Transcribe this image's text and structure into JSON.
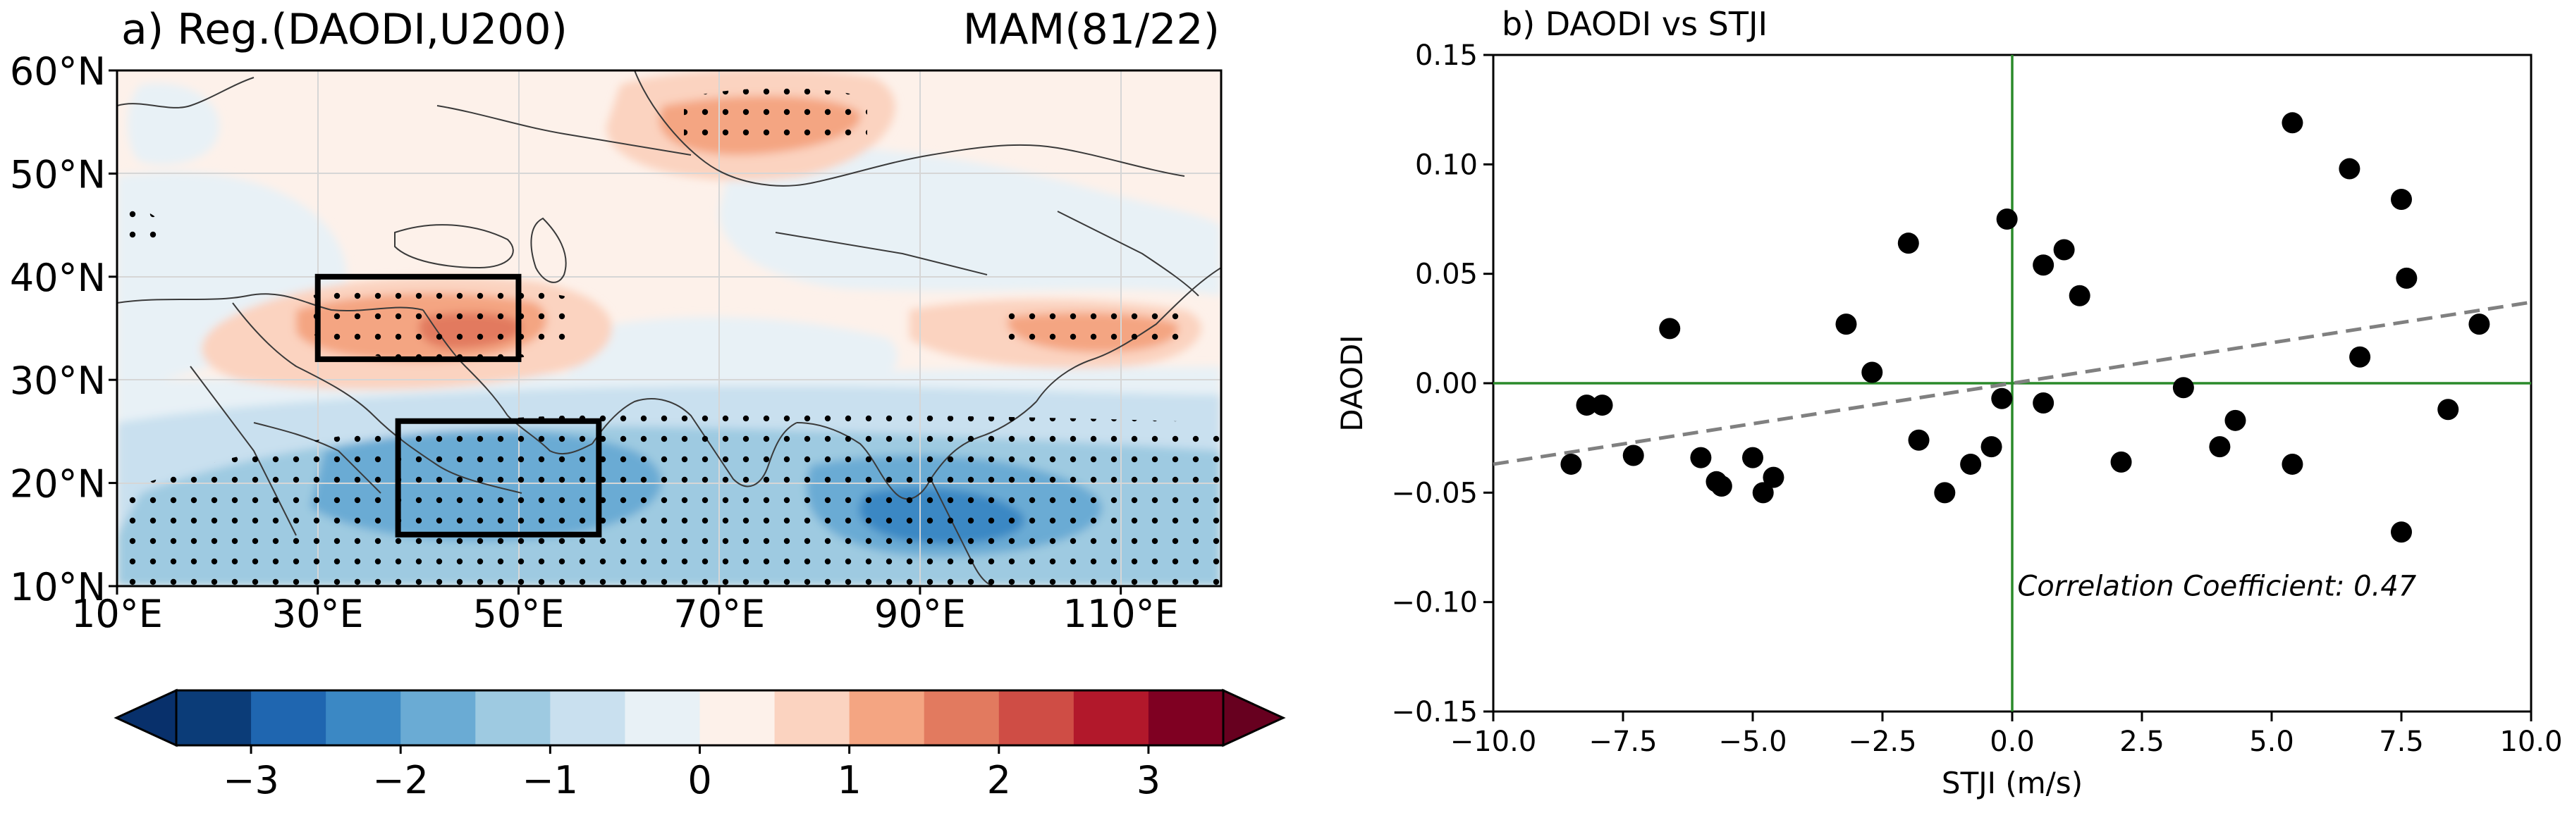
{
  "panel_a": {
    "title": "a) Reg.(DAODI,U200)",
    "season_label": "MAM(81/22)",
    "lat_ticks": [
      "10°N",
      "20°N",
      "30°N",
      "40°N",
      "50°N",
      "60°N"
    ],
    "lon_ticks": [
      "10°E",
      "30°E",
      "50°E",
      "70°E",
      "90°E",
      "110°E"
    ],
    "lon_range": [
      10,
      120
    ],
    "lat_range": [
      10,
      60
    ],
    "boxes": [
      {
        "name": "north-box",
        "lon": [
          30,
          50
        ],
        "lat": [
          32,
          40
        ]
      },
      {
        "name": "south-box",
        "lon": [
          38,
          58
        ],
        "lat": [
          15,
          26
        ]
      }
    ],
    "colorbar": {
      "levels": [
        -3.5,
        -3,
        -2.5,
        -2,
        -1.5,
        -1,
        -0.5,
        0,
        0.5,
        1,
        1.5,
        2,
        2.5,
        3,
        3.5
      ],
      "colors": [
        "#0b3c78",
        "#1f66b0",
        "#3b88c4",
        "#6aabd4",
        "#9ecae1",
        "#c9e0ef",
        "#e8f1f6",
        "#fdf1ea",
        "#fbd3c0",
        "#f4a582",
        "#e27a5f",
        "#cf4d45",
        "#b2182b",
        "#7f0022"
      ],
      "under_color": "#08306b",
      "over_color": "#67001f",
      "tick_labels": [
        "−3",
        "−2",
        "−1",
        "0",
        "1",
        "2",
        "3"
      ],
      "tick_values": [
        -3,
        -2,
        -1,
        0,
        1,
        2,
        3
      ]
    }
  },
  "chart_data": {
    "type": "scatter",
    "title": "b) DAODI vs STJI",
    "xlabel": "STJI (m/s)",
    "ylabel": "DAODI",
    "xlim": [
      -10,
      10
    ],
    "ylim": [
      -0.15,
      0.15
    ],
    "x_ticks": [
      -10,
      -7.5,
      -5,
      -2.5,
      0,
      2.5,
      5,
      7.5,
      10
    ],
    "x_tick_labels": [
      "−10.0",
      "−7.5",
      "−5.0",
      "−2.5",
      "0.0",
      "2.5",
      "5.0",
      "7.5",
      "10.0"
    ],
    "y_ticks": [
      -0.15,
      -0.1,
      -0.05,
      0,
      0.05,
      0.1,
      0.15
    ],
    "y_tick_labels": [
      "−0.15",
      "−0.10",
      "−0.05",
      "0.00",
      "0.05",
      "0.10",
      "0.15"
    ],
    "grid": false,
    "points": [
      {
        "x": -8.5,
        "y": -0.037
      },
      {
        "x": -8.2,
        "y": -0.01
      },
      {
        "x": -7.9,
        "y": -0.01
      },
      {
        "x": -7.3,
        "y": -0.033
      },
      {
        "x": -6.6,
        "y": 0.025
      },
      {
        "x": -6.0,
        "y": -0.034
      },
      {
        "x": -5.7,
        "y": -0.045
      },
      {
        "x": -5.6,
        "y": -0.047
      },
      {
        "x": -5.0,
        "y": -0.034
      },
      {
        "x": -4.8,
        "y": -0.05
      },
      {
        "x": -4.6,
        "y": -0.043
      },
      {
        "x": -3.2,
        "y": 0.027
      },
      {
        "x": -2.7,
        "y": 0.005
      },
      {
        "x": -2.0,
        "y": 0.064
      },
      {
        "x": -1.8,
        "y": -0.026
      },
      {
        "x": -1.3,
        "y": -0.05
      },
      {
        "x": -0.8,
        "y": -0.037
      },
      {
        "x": -0.4,
        "y": -0.029
      },
      {
        "x": -0.2,
        "y": -0.007
      },
      {
        "x": -0.1,
        "y": 0.075
      },
      {
        "x": 0.6,
        "y": 0.054
      },
      {
        "x": 0.6,
        "y": -0.009
      },
      {
        "x": 1.0,
        "y": 0.061
      },
      {
        "x": 1.3,
        "y": 0.04
      },
      {
        "x": 2.1,
        "y": -0.036
      },
      {
        "x": 3.3,
        "y": -0.002
      },
      {
        "x": 4.0,
        "y": -0.029
      },
      {
        "x": 4.3,
        "y": -0.017
      },
      {
        "x": 5.4,
        "y": 0.119
      },
      {
        "x": 5.4,
        "y": -0.037
      },
      {
        "x": 6.5,
        "y": 0.098
      },
      {
        "x": 6.7,
        "y": 0.012
      },
      {
        "x": 7.5,
        "y": 0.084
      },
      {
        "x": 7.6,
        "y": 0.048
      },
      {
        "x": 7.5,
        "y": -0.068
      },
      {
        "x": 8.4,
        "y": -0.012
      },
      {
        "x": 9.0,
        "y": 0.027
      }
    ],
    "trend_line": {
      "x": [
        -10,
        10
      ],
      "y": [
        -0.037,
        0.037
      ],
      "style": "dashed",
      "color": "#808080"
    },
    "reference_lines": {
      "x0": 0,
      "y0": 0,
      "color": "#2a8a2a"
    },
    "annotation": "Correlation Coefficient: 0.47",
    "point_color": "#000000"
  }
}
